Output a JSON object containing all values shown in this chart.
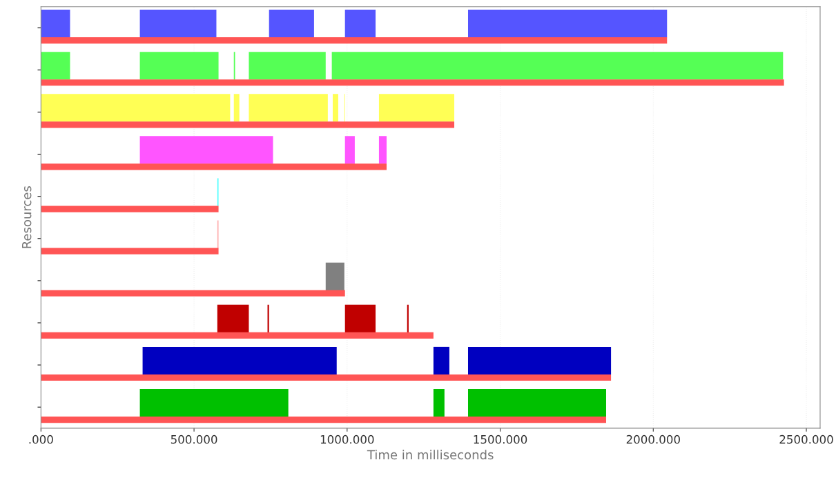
{
  "chart_data": {
    "type": "bar",
    "orientation": "horizontal",
    "xlabel": "Time in milliseconds",
    "ylabel": "Resources",
    "categories": [
      null,
      null,
      null,
      null,
      null,
      null,
      null,
      null,
      null,
      null
    ],
    "series": [
      {
        "base": [
          0,
          0,
          0,
          323,
          576,
          576,
          930,
          576,
          332,
          323
        ],
        "values": [
          95,
          95,
          618,
          435,
          4,
          4,
          61,
          103,
          634,
          485
        ],
        "colors": [
          "#5555ff",
          "#55ff55",
          "#ffff55",
          "#ff55ff",
          "#55ffff",
          "#ffafaf",
          "#808080",
          "#c00000",
          "#0000c0",
          "#00c000"
        ]
      },
      {
        "base": [
          323,
          323,
          630,
          993,
          null,
          null,
          null,
          740,
          1282,
          1282
        ],
        "values": [
          250,
          257,
          18,
          32,
          null,
          null,
          null,
          5,
          52,
          36
        ],
        "colors": [
          "#5555ff",
          "#55ff55",
          "#ffff55",
          "#ff55ff",
          "#55ffff",
          "#ffafaf",
          "#808080",
          "#c00000",
          "#0000c0",
          "#00c000"
        ]
      },
      {
        "base": [
          745,
          630,
          679,
          1104,
          null,
          null,
          null,
          993,
          1395,
          1395
        ],
        "values": [
          147,
          4,
          258,
          25,
          null,
          null,
          null,
          100,
          467,
          451
        ],
        "colors": [
          "#5555ff",
          "#55ff55",
          "#ffff55",
          "#ff55ff",
          "#55ffff",
          "#ffafaf",
          "#808080",
          "#c00000",
          "#0000c0",
          "#00c000"
        ]
      },
      {
        "base": [
          993,
          679,
          953,
          null,
          null,
          null,
          null,
          1196,
          null,
          null
        ],
        "values": [
          100,
          251,
          18,
          null,
          null,
          null,
          null,
          5,
          null,
          null
        ],
        "colors": [
          "#5555ff",
          "#55ff55",
          "#ffff55",
          "#ff55ff",
          "#55ffff",
          "#ffafaf",
          "#808080",
          "#c00000",
          "#0000c0",
          "#00c000"
        ]
      },
      {
        "base": [
          1395,
          950,
          991,
          null,
          null,
          null,
          null,
          null,
          null,
          null
        ],
        "values": [
          650,
          1474,
          2,
          null,
          null,
          null,
          null,
          null,
          null,
          null
        ],
        "colors": [
          "#5555ff",
          "#55ff55",
          "#ffff55",
          "#ff55ff",
          "#55ffff",
          "#ffafaf",
          "#808080",
          "#c00000",
          "#0000c0",
          "#00c000"
        ]
      },
      {
        "base": [
          null,
          null,
          1104,
          null,
          null,
          null,
          null,
          null,
          null,
          null
        ],
        "values": [
          null,
          null,
          246,
          null,
          null,
          null,
          null,
          null,
          null,
          null
        ],
        "colors": [
          "#5555ff",
          "#55ff55",
          "#ffff55",
          "#ff55ff",
          "#55ffff",
          "#ffafaf",
          "#808080",
          "#c00000",
          "#0000c0",
          "#00c000"
        ]
      },
      {
        "color": "#ff5555",
        "values": [
          2045,
          2427,
          1350,
          1129,
          580,
          580,
          993,
          1282,
          1862,
          1846
        ]
      }
    ],
    "xlim": [
      0,
      2545
    ],
    "xticks": [
      {
        "value": 0,
        "label": ".000"
      },
      {
        "value": 500,
        "label": "500.000"
      },
      {
        "value": 1000,
        "label": "1000.000"
      },
      {
        "value": 1500,
        "label": "1500.000"
      },
      {
        "value": 2000,
        "label": "2000.000"
      },
      {
        "value": 2500,
        "label": "2500.000"
      }
    ],
    "grid": "x",
    "tick_labels": "x"
  }
}
